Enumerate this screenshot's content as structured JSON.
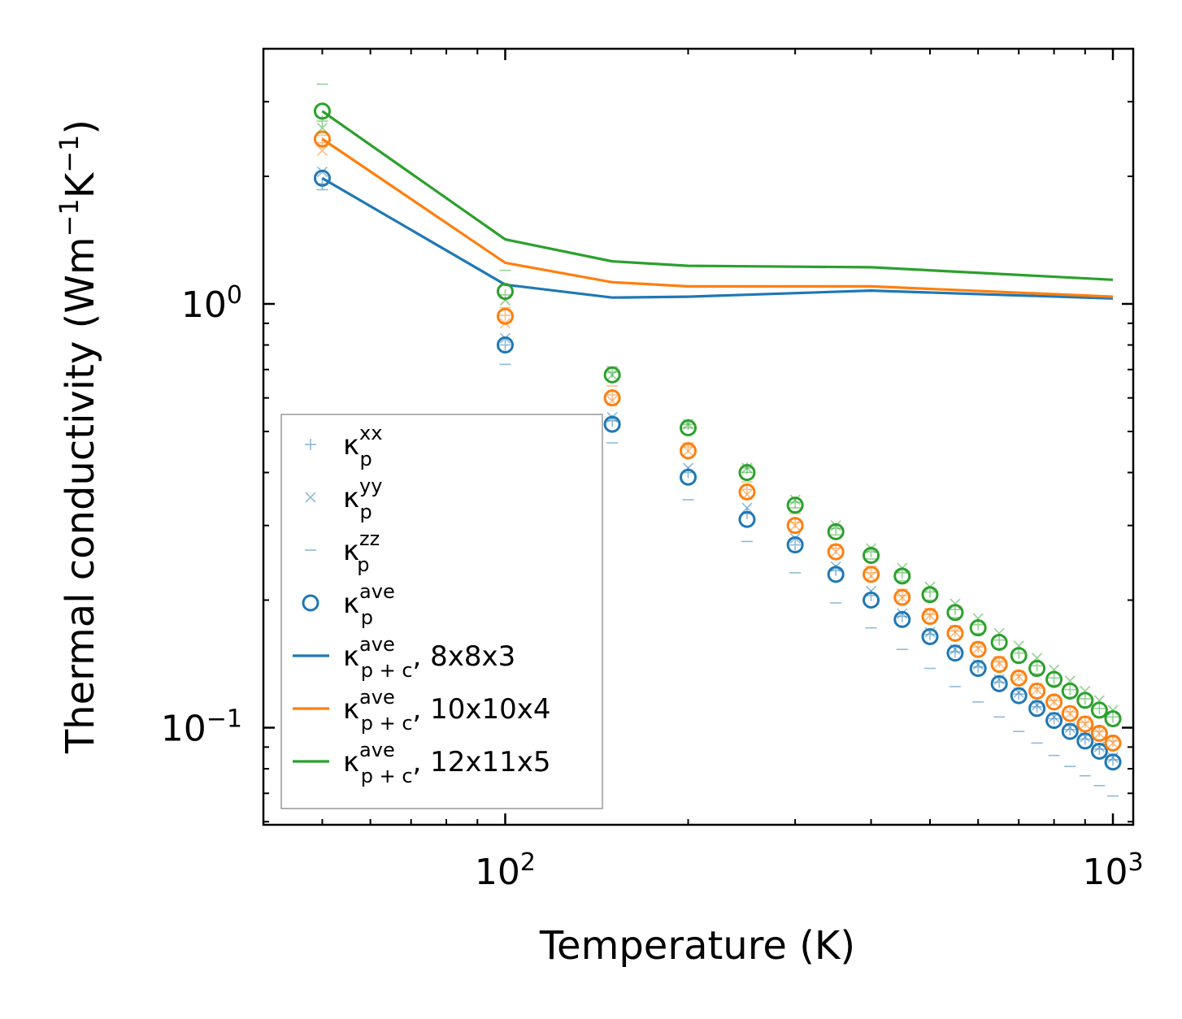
{
  "chart_data": {
    "type": "scatter",
    "xlabel": "Temperature (K)",
    "ylabel_main": "Thermal conductivity (Wm",
    "ylabel_sup1": "−1",
    "ylabel_mid": "K",
    "ylabel_sup2": "−1",
    "ylabel_end": ")",
    "xscale": "log",
    "yscale": "log",
    "xlim": [
      40,
      1080
    ],
    "ylim": [
      0.059,
      4.0
    ],
    "x_ticks": [
      {
        "value": 100,
        "base": "10",
        "exp": "2"
      },
      {
        "value": 1000,
        "base": "10",
        "exp": "3"
      }
    ],
    "y_ticks": [
      {
        "value": 0.1,
        "base": "10",
        "exp": "−1"
      },
      {
        "value": 1,
        "base": "10",
        "exp": "0"
      }
    ],
    "legend_location": "lower-left",
    "legend": [
      {
        "marker": "plus",
        "sym": "κ",
        "sub": "p",
        "sup": "xx",
        "suffix": ""
      },
      {
        "marker": "cross",
        "sym": "κ",
        "sub": "p",
        "sup": "yy",
        "suffix": ""
      },
      {
        "marker": "dash",
        "sym": "κ",
        "sub": "p",
        "sup": "zz",
        "suffix": ""
      },
      {
        "marker": "circle",
        "sym": "κ",
        "sub": "p",
        "sup": "ave",
        "suffix": ""
      },
      {
        "marker": "line",
        "color": "#1f77b4",
        "sym": "κ",
        "sub": "p + c",
        "sup": "ave",
        "suffix": ", 8x8x3"
      },
      {
        "marker": "line",
        "color": "#ff7f0e",
        "sym": "κ",
        "sub": "p + c",
        "sup": "ave",
        "suffix": ", 10x10x4"
      },
      {
        "marker": "line",
        "color": "#2ca02c",
        "sym": "κ",
        "sub": "p + c",
        "sup": "ave",
        "suffix": ", 12x11x5"
      }
    ],
    "x": [
      50,
      100,
      150,
      200,
      250,
      300,
      350,
      400,
      450,
      500,
      550,
      600,
      650,
      700,
      750,
      800,
      850,
      900,
      950,
      1000
    ],
    "series": [
      {
        "name": "8x8x3",
        "color": "#1f77b4",
        "ave": [
          1.98,
          0.8,
          0.52,
          0.39,
          0.31,
          0.27,
          0.23,
          0.2,
          0.18,
          0.164,
          0.15,
          0.138,
          0.127,
          0.119,
          0.111,
          0.104,
          0.098,
          0.093,
          0.088,
          0.083
        ],
        "xx": [
          1.92,
          0.8,
          0.53,
          0.4,
          0.32,
          0.27,
          0.235,
          0.205,
          0.183,
          0.166,
          0.151,
          0.139,
          0.128,
          0.12,
          0.112,
          0.105,
          0.099,
          0.094,
          0.089,
          0.084
        ],
        "yy": [
          2.05,
          0.83,
          0.54,
          0.41,
          0.33,
          0.28,
          0.24,
          0.21,
          0.186,
          0.168,
          0.153,
          0.141,
          0.13,
          0.121,
          0.113,
          0.106,
          0.1,
          0.095,
          0.09,
          0.085
        ],
        "zz": [
          1.86,
          0.72,
          0.47,
          0.345,
          0.275,
          0.232,
          0.197,
          0.172,
          0.153,
          0.138,
          0.125,
          0.115,
          0.106,
          0.098,
          0.092,
          0.086,
          0.081,
          0.077,
          0.073,
          0.069
        ],
        "total": [
          1.98,
          1.11,
          1.035,
          1.04,
          null,
          null,
          null,
          1.075,
          null,
          null,
          null,
          null,
          null,
          null,
          null,
          null,
          null,
          null,
          null,
          1.03
        ]
      },
      {
        "name": "10x10x4",
        "color": "#ff7f0e",
        "ave": [
          2.45,
          0.935,
          0.6,
          0.45,
          0.36,
          0.3,
          0.26,
          0.23,
          0.203,
          0.183,
          0.167,
          0.153,
          0.141,
          0.131,
          0.122,
          0.115,
          0.108,
          0.102,
          0.097,
          0.092
        ],
        "xx": [
          2.4,
          0.94,
          0.61,
          0.46,
          0.365,
          0.305,
          0.265,
          0.232,
          0.205,
          0.185,
          0.169,
          0.155,
          0.143,
          0.133,
          0.124,
          0.116,
          0.109,
          0.103,
          0.098,
          0.093
        ],
        "yy": [
          2.3,
          0.9,
          0.59,
          0.45,
          0.355,
          0.3,
          0.26,
          0.228,
          0.203,
          0.184,
          0.168,
          0.154,
          0.142,
          0.132,
          0.123,
          0.115,
          0.108,
          0.102,
          0.097,
          0.092
        ],
        "zz": [
          2.5,
          0.98,
          0.64,
          0.47,
          0.38,
          0.32,
          0.27,
          0.24,
          0.212,
          0.191,
          0.174,
          0.159,
          0.147,
          0.136,
          0.127,
          0.119,
          0.112,
          0.106,
          0.1,
          0.095
        ],
        "total": [
          2.45,
          1.25,
          1.125,
          1.1,
          null,
          null,
          null,
          1.1,
          null,
          null,
          null,
          null,
          null,
          null,
          null,
          null,
          null,
          null,
          null,
          1.04
        ]
      },
      {
        "name": "12x11x5",
        "color": "#2ca02c",
        "ave": [
          2.85,
          1.07,
          0.68,
          0.51,
          0.4,
          0.335,
          0.29,
          0.255,
          0.228,
          0.206,
          0.187,
          0.172,
          0.159,
          0.148,
          0.138,
          0.13,
          0.122,
          0.116,
          0.11,
          0.105
        ],
        "xx": [
          2.7,
          1.05,
          0.69,
          0.52,
          0.41,
          0.34,
          0.295,
          0.26,
          0.232,
          0.209,
          0.19,
          0.175,
          0.161,
          0.15,
          0.14,
          0.131,
          0.123,
          0.117,
          0.111,
          0.106
        ],
        "yy": [
          2.6,
          1.02,
          0.68,
          0.52,
          0.41,
          0.345,
          0.3,
          0.265,
          0.238,
          0.215,
          0.196,
          0.181,
          0.167,
          0.156,
          0.146,
          0.137,
          0.129,
          0.122,
          0.116,
          0.11
        ],
        "zz": [
          3.3,
          1.2,
          0.71,
          0.51,
          0.4,
          0.33,
          0.285,
          0.25,
          0.222,
          0.2,
          0.182,
          0.167,
          0.154,
          0.143,
          0.134,
          0.126,
          0.118,
          0.112,
          0.106,
          0.101
        ],
        "total": [
          2.85,
          1.42,
          1.26,
          1.23,
          null,
          null,
          null,
          1.22,
          null,
          null,
          null,
          null,
          null,
          null,
          null,
          null,
          null,
          null,
          null,
          1.14
        ]
      }
    ]
  }
}
